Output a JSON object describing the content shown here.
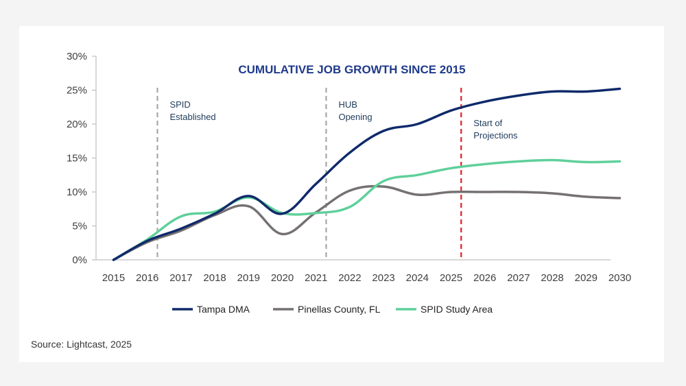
{
  "chart_data": {
    "type": "line",
    "title": "CUMULATIVE JOB GROWTH SINCE 2015",
    "xlabel": "",
    "ylabel": "",
    "x": [
      2015,
      2016,
      2017,
      2018,
      2019,
      2020,
      2021,
      2022,
      2023,
      2024,
      2025,
      2026,
      2027,
      2028,
      2029,
      2030
    ],
    "x_tick_labels": [
      "2015",
      "2016",
      "2017",
      "2018",
      "2019",
      "2020",
      "2021",
      "2022",
      "2023",
      "2024",
      "2025",
      "2026",
      "2027",
      "2028",
      "2029",
      "2030"
    ],
    "ylim": [
      0,
      30
    ],
    "y_ticks": [
      0,
      5,
      10,
      15,
      20,
      25,
      30
    ],
    "y_tick_labels": [
      "0%",
      "5%",
      "10%",
      "15%",
      "20%",
      "25%",
      "30%"
    ],
    "grid": false,
    "legend_position": "bottom",
    "series": [
      {
        "name": "Tampa DMA",
        "color": "#0f2a6b",
        "values": [
          0,
          2.8,
          4.6,
          6.8,
          9.4,
          6.8,
          11.2,
          15.8,
          19.0,
          20.0,
          22.0,
          23.3,
          24.2,
          24.8,
          24.8,
          25.2
        ]
      },
      {
        "name": "Pinellas County, FL",
        "color": "#767171",
        "values": [
          0,
          2.6,
          4.3,
          6.6,
          7.9,
          3.8,
          7.0,
          10.2,
          10.8,
          9.6,
          10.0,
          10.0,
          10.0,
          9.8,
          9.3,
          9.1
        ]
      },
      {
        "name": "SPID Study Area",
        "color": "#5fd09a",
        "values": [
          0,
          3.0,
          6.4,
          7.1,
          9.2,
          6.9,
          6.9,
          7.8,
          11.6,
          12.5,
          13.5,
          14.1,
          14.5,
          14.7,
          14.4,
          14.5
        ]
      }
    ],
    "markers": [
      {
        "x": 2016.3,
        "label_lines": [
          "SPID",
          "Established"
        ],
        "color": "#a6a6a6"
      },
      {
        "x": 2021.3,
        "label_lines": [
          "HUB",
          "Opening"
        ],
        "color": "#a6a6a6"
      },
      {
        "x": 2025.3,
        "label_lines": [
          "Start of",
          "Projections"
        ],
        "color": "#e02020"
      }
    ]
  },
  "source": "Source: Lightcast, 2025"
}
